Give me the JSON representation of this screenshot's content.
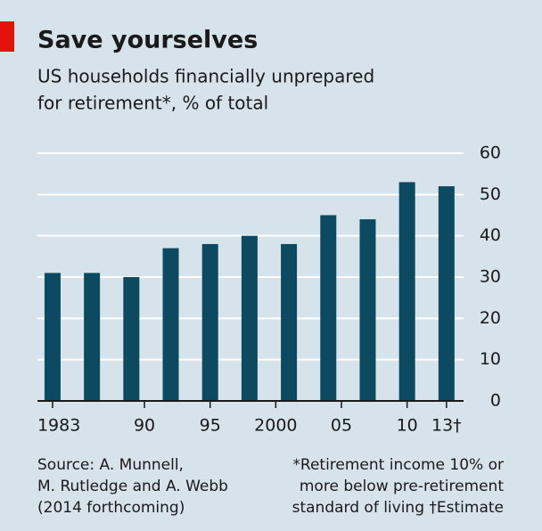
{
  "chart_data": {
    "type": "bar",
    "title": "Save yourselves",
    "subtitle": [
      "US households financially unprepared",
      "for retirement*, % of total"
    ],
    "x": [
      1983,
      1986,
      1989,
      1992,
      1995,
      1998,
      2001,
      2004,
      2007,
      2010,
      2013
    ],
    "values": [
      31,
      31,
      30,
      37,
      38,
      40,
      38,
      45,
      44,
      53,
      52
    ],
    "color": "#0c4a62",
    "xlim": [
      1981.85,
      2014.3
    ],
    "xticks": [
      {
        "value": 1983,
        "label": "1983"
      },
      {
        "value": 1990,
        "label": "90"
      },
      {
        "value": 1995,
        "label": "95"
      },
      {
        "value": 2000,
        "label": "2000"
      },
      {
        "value": 2005,
        "label": "05"
      },
      {
        "value": 2010,
        "label": "10"
      },
      {
        "value": 2013,
        "label": "13†"
      }
    ],
    "ylim": [
      0,
      60
    ],
    "yticks": [
      0,
      10,
      20,
      30,
      40,
      50,
      60
    ],
    "grid": true,
    "source": [
      "Source: A. Munnell,",
      "M. Rutledge and A. Webb",
      "(2014 forthcoming)"
    ],
    "note": [
      "*Retirement income 10% or",
      "more below pre-retirement",
      "standard of living  †Estimate"
    ]
  }
}
